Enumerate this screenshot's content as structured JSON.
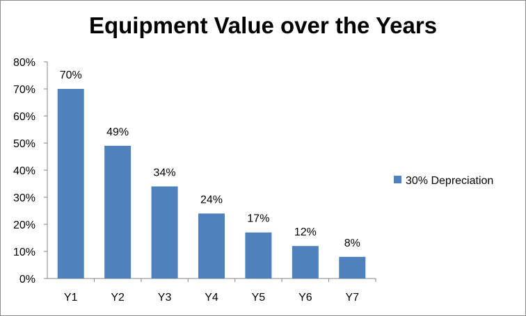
{
  "chart_data": {
    "type": "bar",
    "title": "Equipment Value over the Years",
    "categories": [
      "Y1",
      "Y2",
      "Y3",
      "Y4",
      "Y5",
      "Y6",
      "Y7"
    ],
    "series": [
      {
        "name": "30% Depreciation",
        "values": [
          70,
          49,
          34,
          24,
          17,
          12,
          8
        ],
        "labels": [
          "70%",
          "49%",
          "34%",
          "24%",
          "17%",
          "12%",
          "8%"
        ],
        "color": "#4f81bd"
      }
    ],
    "ylim": [
      0,
      80
    ],
    "ytick_labels": [
      "0%",
      "10%",
      "20%",
      "30%",
      "40%",
      "50%",
      "60%",
      "70%",
      "80%"
    ],
    "xlabel": "",
    "ylabel": "",
    "grid": false,
    "legend_position": "right"
  }
}
